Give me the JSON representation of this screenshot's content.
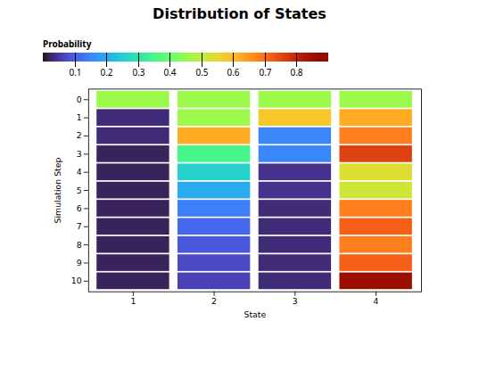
{
  "chart_data": {
    "type": "heatmap",
    "title": "Distribution of States",
    "xlabel": "State",
    "ylabel": "Simulation Step",
    "colorbar_label": "Probability",
    "x": [
      1,
      2,
      3,
      4
    ],
    "y": [
      0,
      1,
      2,
      3,
      4,
      5,
      6,
      7,
      8,
      9,
      10
    ],
    "values": [
      [
        0.46,
        0.46,
        0.46,
        0.46
      ],
      [
        0.03,
        0.46,
        0.58,
        0.62
      ],
      [
        0.03,
        0.62,
        0.15,
        0.68
      ],
      [
        0.02,
        0.35,
        0.15,
        0.76
      ],
      [
        0.02,
        0.26,
        0.04,
        0.54
      ],
      [
        0.02,
        0.2,
        0.04,
        0.52
      ],
      [
        0.02,
        0.14,
        0.03,
        0.68
      ],
      [
        0.02,
        0.11,
        0.03,
        0.72
      ],
      [
        0.02,
        0.09,
        0.03,
        0.68
      ],
      [
        0.02,
        0.07,
        0.03,
        0.72
      ],
      [
        0.02,
        0.06,
        0.03,
        0.86
      ]
    ],
    "color_range": [
      0,
      0.9
    ],
    "color_ticks": [
      0.1,
      0.2,
      0.3,
      0.4,
      0.5,
      0.6,
      0.7,
      0.8
    ]
  }
}
